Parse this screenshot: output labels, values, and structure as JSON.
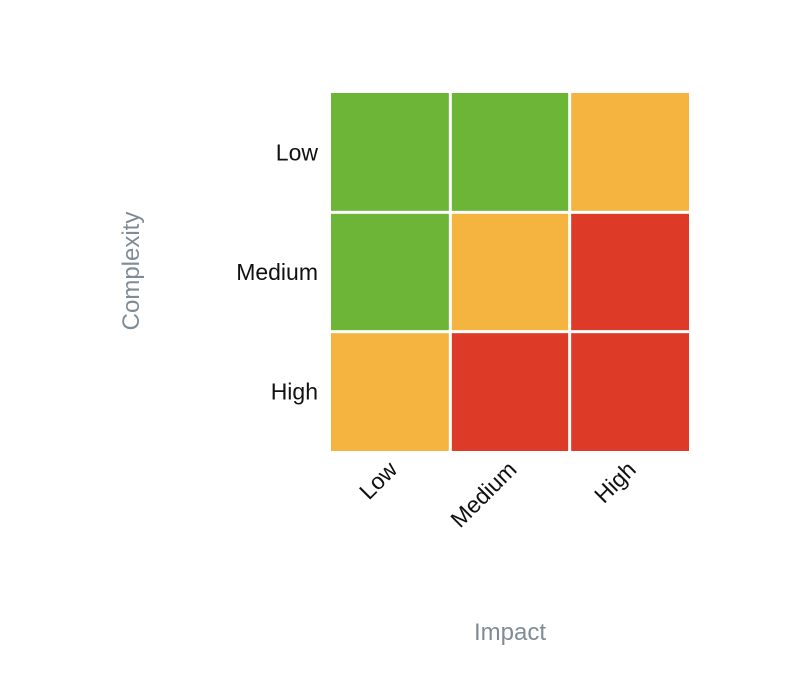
{
  "chart_data": {
    "type": "heatmap",
    "title": "",
    "xlabel": "Impact",
    "ylabel": "Complexity",
    "x_categories": [
      "Low",
      "Medium",
      "High"
    ],
    "y_categories": [
      "Low",
      "Medium",
      "High"
    ],
    "values": [
      [
        "green",
        "green",
        "orange"
      ],
      [
        "green",
        "orange",
        "red"
      ],
      [
        "orange",
        "red",
        "red"
      ]
    ],
    "colors": {
      "green": "#6cb536",
      "orange": "#f4b43f",
      "red": "#de3a28"
    },
    "grid": false,
    "legend": "none"
  }
}
